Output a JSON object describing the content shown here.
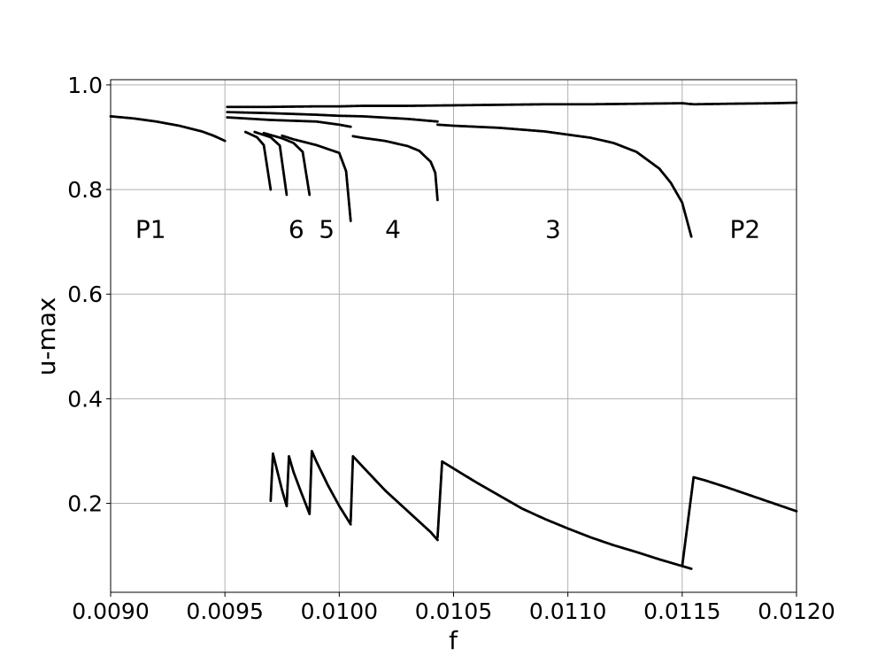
{
  "chart_data": {
    "type": "scatter",
    "title": "",
    "xlabel": "f",
    "ylabel": "u-max",
    "xlim": [
      0.009,
      0.012
    ],
    "ylim": [
      0.03,
      1.01
    ],
    "grid": true,
    "marker_color": "#000000",
    "x_ticks": [
      {
        "value": 0.009,
        "label": "0.0090"
      },
      {
        "value": 0.0095,
        "label": "0.0095"
      },
      {
        "value": 0.01,
        "label": "0.0100"
      },
      {
        "value": 0.0105,
        "label": "0.0105"
      },
      {
        "value": 0.011,
        "label": "0.0110"
      },
      {
        "value": 0.0115,
        "label": "0.0115"
      },
      {
        "value": 0.012,
        "label": "0.0120"
      }
    ],
    "y_ticks": [
      {
        "value": 0.2,
        "label": "0.2"
      },
      {
        "value": 0.4,
        "label": "0.4"
      },
      {
        "value": 0.6,
        "label": "0.6"
      },
      {
        "value": 0.8,
        "label": "0.8"
      },
      {
        "value": 1.0,
        "label": "1.0"
      }
    ],
    "annotations": [
      {
        "text": "P1",
        "x": 0.009175,
        "y": 0.725
      },
      {
        "text": "6",
        "x": 0.009812,
        "y": 0.725
      },
      {
        "text": "5",
        "x": 0.009945,
        "y": 0.725
      },
      {
        "text": "4",
        "x": 0.010235,
        "y": 0.725
      },
      {
        "text": "3",
        "x": 0.010935,
        "y": 0.725
      },
      {
        "text": "P2",
        "x": 0.011775,
        "y": 0.725
      }
    ],
    "series": [
      {
        "x": [
          0.009,
          0.0091,
          0.0092,
          0.0093,
          0.0094,
          0.00945,
          0.0095
        ],
        "values": [
          0.94,
          0.936,
          0.93,
          0.922,
          0.911,
          0.903,
          0.893
        ]
      },
      {
        "x": [
          0.00951,
          0.0097,
          0.0099,
          0.01,
          0.0101,
          0.0103,
          0.0105,
          0.0107,
          0.0109,
          0.0111,
          0.0113,
          0.0115,
          0.01155,
          0.0117,
          0.0119,
          0.012
        ],
        "values": [
          0.958,
          0.958,
          0.959,
          0.959,
          0.96,
          0.96,
          0.961,
          0.962,
          0.963,
          0.963,
          0.964,
          0.965,
          0.963,
          0.964,
          0.965,
          0.966
        ]
      },
      {
        "x": [
          0.00951,
          0.0097,
          0.0099,
          0.01,
          0.0101,
          0.0103,
          0.01043
        ],
        "values": [
          0.948,
          0.946,
          0.943,
          0.941,
          0.94,
          0.935,
          0.93
        ]
      },
      {
        "x": [
          0.00951,
          0.0097,
          0.0099,
          0.01,
          0.01005
        ],
        "values": [
          0.938,
          0.933,
          0.93,
          0.924,
          0.92
        ]
      },
      {
        "x": [
          0.01043,
          0.0105,
          0.0107,
          0.0109,
          0.0111,
          0.0112,
          0.0113,
          0.0114,
          0.01145,
          0.0115,
          0.01154
        ],
        "values": [
          0.924,
          0.922,
          0.918,
          0.911,
          0.899,
          0.889,
          0.872,
          0.84,
          0.813,
          0.775,
          0.71
        ]
      },
      {
        "x": [
          0.01006,
          0.0101,
          0.0102,
          0.0103,
          0.01035,
          0.0104,
          0.01042,
          0.01043
        ],
        "values": [
          0.902,
          0.899,
          0.893,
          0.883,
          0.874,
          0.853,
          0.832,
          0.78
        ]
      },
      {
        "x": [
          0.00975,
          0.0098,
          0.0099,
          0.01,
          0.01003,
          0.01005
        ],
        "values": [
          0.903,
          0.896,
          0.885,
          0.87,
          0.835,
          0.74
        ]
      },
      {
        "x": [
          0.00967,
          0.00975,
          0.0098,
          0.00984,
          0.00987
        ],
        "values": [
          0.908,
          0.898,
          0.889,
          0.872,
          0.79
        ]
      },
      {
        "x": [
          0.00963,
          0.0097,
          0.00974,
          0.00977
        ],
        "values": [
          0.91,
          0.9,
          0.884,
          0.79
        ]
      },
      {
        "x": [
          0.00959,
          0.00964,
          0.00967,
          0.0097
        ],
        "values": [
          0.91,
          0.9,
          0.885,
          0.8
        ]
      },
      {
        "x": [
          0.0115,
          0.01155,
          0.0116,
          0.0117,
          0.0118,
          0.0119,
          0.012
        ],
        "values": [
          0.08,
          0.25,
          0.244,
          0.23,
          0.215,
          0.2,
          0.185
        ]
      },
      {
        "x": [
          0.01043,
          0.01045,
          0.0106,
          0.0107,
          0.0108,
          0.0109,
          0.011,
          0.0111,
          0.0112,
          0.0113,
          0.0114,
          0.01154
        ],
        "values": [
          0.135,
          0.28,
          0.24,
          0.215,
          0.19,
          0.17,
          0.152,
          0.135,
          0.12,
          0.107,
          0.093,
          0.075
        ]
      },
      {
        "x": [
          0.01005,
          0.01006,
          0.0102,
          0.0103,
          0.0104,
          0.01043
        ],
        "values": [
          0.165,
          0.29,
          0.225,
          0.185,
          0.145,
          0.13
        ]
      },
      {
        "x": [
          0.00987,
          0.00988,
          0.0099,
          0.00995,
          0.01,
          0.01005
        ],
        "values": [
          0.18,
          0.3,
          0.28,
          0.235,
          0.195,
          0.16
        ]
      },
      {
        "x": [
          0.00977,
          0.00978,
          0.0098,
          0.00983,
          0.00987
        ],
        "values": [
          0.195,
          0.29,
          0.26,
          0.225,
          0.18
        ]
      },
      {
        "x": [
          0.0097,
          0.00971,
          0.00973,
          0.00975,
          0.00977
        ],
        "values": [
          0.205,
          0.295,
          0.26,
          0.225,
          0.195
        ]
      }
    ]
  }
}
